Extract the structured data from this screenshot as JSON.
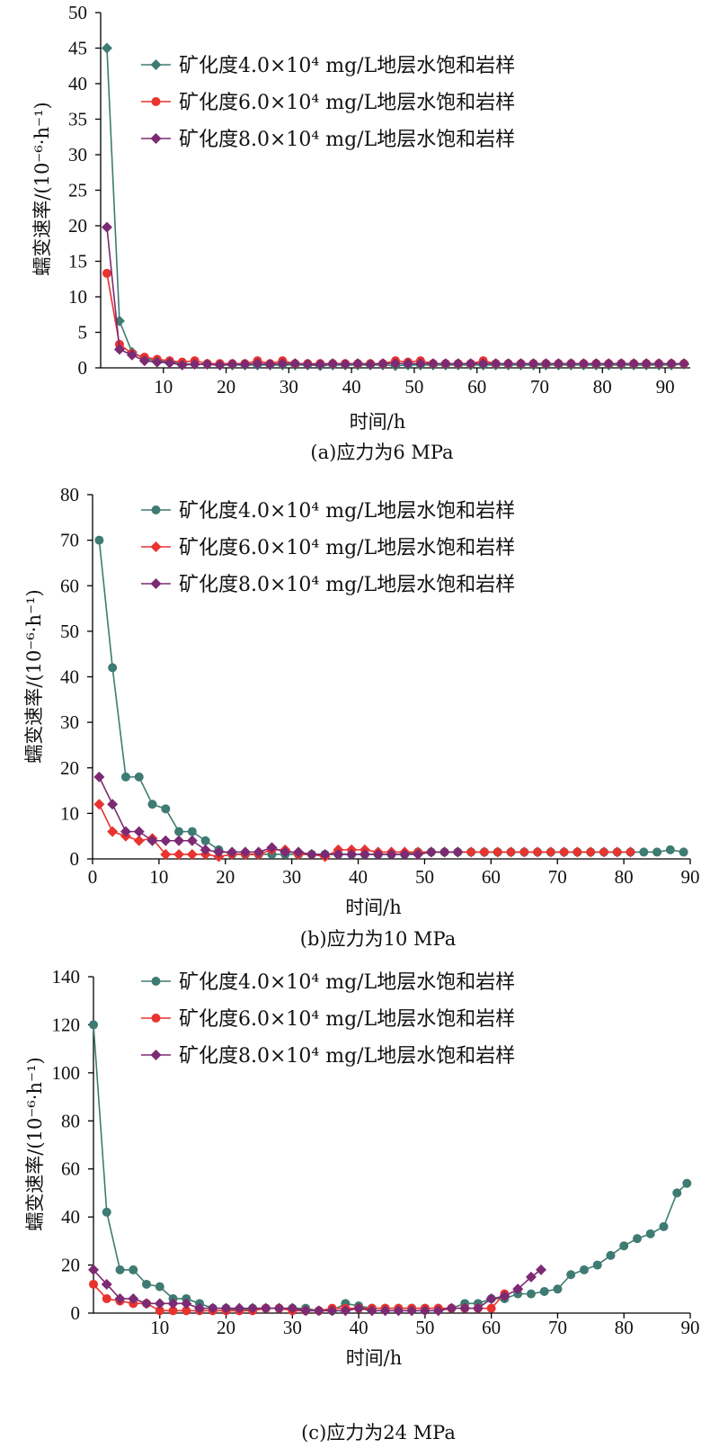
{
  "chart_data": [
    {
      "type": "line",
      "caption": "(a)应力为6 MPa",
      "xlabel": "时间/h",
      "ylabel": "蠕变速率/(10⁻⁶·h⁻¹)",
      "xlim": [
        0,
        94
      ],
      "ylim": [
        0,
        50
      ],
      "xticks": [
        10,
        20,
        30,
        40,
        50,
        60,
        70,
        80,
        90
      ],
      "yticks": [
        0,
        5,
        10,
        15,
        20,
        25,
        30,
        35,
        40,
        45,
        50
      ],
      "legend_position": "top-right",
      "series": [
        {
          "name": "矿化度4.0×10⁴ mg/L地层水饱和岩样",
          "color": "#3E7B72",
          "marker": "diamond",
          "x": [
            1,
            3,
            5,
            7,
            9,
            11,
            13,
            15,
            17,
            19,
            21,
            23,
            25,
            27,
            29,
            31,
            33,
            35,
            37,
            39,
            41,
            43,
            45,
            47,
            49,
            51,
            53,
            55,
            57,
            59,
            61,
            63,
            65,
            67,
            69,
            71,
            73,
            75,
            77,
            79,
            81,
            83,
            85,
            87,
            89,
            91,
            93
          ],
          "y": [
            45,
            6.6,
            2.2,
            1.3,
            1.0,
            0.8,
            0.6,
            0.5,
            0.5,
            0.4,
            0.4,
            0.4,
            0.4,
            0.4,
            0.4,
            0.4,
            0.4,
            0.3,
            0.4,
            0.4,
            0.4,
            0.4,
            0.4,
            0.3,
            0.4,
            0.4,
            0.4,
            0.4,
            0.4,
            0.4,
            0.4,
            0.4,
            0.4,
            0.4,
            0.4,
            0.4,
            0.4,
            0.4,
            0.4,
            0.4,
            0.4,
            0.4,
            0.4,
            0.4,
            0.4,
            0.4,
            0.5
          ]
        },
        {
          "name": "矿化度6.0×10⁴ mg/L地层水饱和岩样",
          "color": "#E8332F",
          "marker": "circle",
          "x": [
            1,
            3,
            5,
            7,
            9,
            11,
            13,
            15,
            17,
            19,
            21,
            23,
            25,
            27,
            29,
            31,
            33,
            35,
            37,
            39,
            41,
            43,
            45,
            47,
            49,
            51,
            53,
            55,
            57,
            59,
            61,
            63,
            65,
            67,
            69,
            71,
            73,
            75,
            77,
            79,
            81,
            83,
            85,
            87,
            89,
            91,
            93
          ],
          "y": [
            13.3,
            3.3,
            2.0,
            1.5,
            1.2,
            1.0,
            0.8,
            1.0,
            0.6,
            0.6,
            0.6,
            0.6,
            1.0,
            0.6,
            1.0,
            0.6,
            0.6,
            0.6,
            0.6,
            0.6,
            0.6,
            0.6,
            0.6,
            1.0,
            0.8,
            1.0,
            0.6,
            0.6,
            0.6,
            0.6,
            1.0,
            0.6,
            0.6,
            0.6,
            0.6,
            0.6,
            0.6,
            0.6,
            0.6,
            0.6,
            0.6,
            0.6,
            0.6,
            0.6,
            0.6,
            0.6,
            0.6
          ]
        },
        {
          "name": "矿化度8.0×10⁴ mg/L地层水饱和岩样",
          "color": "#7B2A73",
          "marker": "diamond",
          "x": [
            1,
            3,
            5,
            7,
            9,
            11,
            13,
            15,
            17,
            19,
            21,
            23,
            25,
            27,
            29,
            31,
            33,
            35,
            37,
            39,
            41,
            43,
            45,
            47,
            49,
            51,
            53,
            55,
            57,
            59,
            61,
            63,
            65,
            67,
            69,
            71,
            73,
            75,
            77,
            79,
            81,
            83,
            85,
            87,
            89,
            91,
            93
          ],
          "y": [
            19.8,
            2.6,
            1.8,
            1.0,
            0.8,
            0.7,
            0.4,
            0.5,
            0.5,
            0.4,
            0.5,
            0.5,
            0.6,
            0.5,
            0.6,
            0.6,
            0.5,
            0.5,
            0.6,
            0.5,
            0.6,
            0.5,
            0.6,
            0.6,
            0.6,
            0.6,
            0.6,
            0.6,
            0.6,
            0.6,
            0.6,
            0.6,
            0.6,
            0.6,
            0.6,
            0.6,
            0.6,
            0.6,
            0.6,
            0.6,
            0.6,
            0.6,
            0.6,
            0.6,
            0.6,
            0.6,
            0.6
          ]
        }
      ]
    },
    {
      "type": "line",
      "caption": "(b)应力为10 MPa",
      "xlabel": "时间/h",
      "ylabel": "蠕变速率/(10⁻⁶·h⁻¹)",
      "xlim": [
        0,
        90
      ],
      "ylim": [
        0,
        80
      ],
      "xticks": [
        0,
        10,
        20,
        30,
        40,
        50,
        60,
        70,
        80,
        90
      ],
      "yticks": [
        0,
        10,
        20,
        30,
        40,
        50,
        60,
        70,
        80
      ],
      "legend_position": "top-right",
      "series": [
        {
          "name": "矿化度4.0×10⁴ mg/L地层水饱和岩样",
          "color": "#3E7B72",
          "marker": "circle",
          "x": [
            1,
            3,
            5,
            7,
            9,
            11,
            13,
            15,
            17,
            19,
            21,
            23,
            25,
            27,
            29,
            31,
            33,
            35,
            37,
            39,
            41,
            43,
            45,
            47,
            49,
            51,
            53,
            55,
            57,
            59,
            61,
            63,
            65,
            67,
            69,
            71,
            73,
            75,
            77,
            79,
            81,
            83,
            85,
            87,
            89
          ],
          "y": [
            70,
            42,
            18,
            18,
            12,
            11,
            6,
            6,
            4,
            2,
            1,
            1,
            1,
            1,
            1,
            1,
            1,
            1,
            1,
            1,
            1,
            1,
            1,
            1,
            1.5,
            1.5,
            1.5,
            1.5,
            1.5,
            1.5,
            1.5,
            1.5,
            1.5,
            1.5,
            1.5,
            1.5,
            1.5,
            1.5,
            1.5,
            1.5,
            1.5,
            1.5,
            1.5,
            2,
            1.5
          ]
        },
        {
          "name": "矿化度6.0×10⁴ mg/L地层水饱和岩样",
          "color": "#E8332F",
          "marker": "diamond",
          "x": [
            1,
            3,
            5,
            7,
            9,
            11,
            13,
            15,
            17,
            19,
            21,
            23,
            25,
            27,
            29,
            31,
            33,
            35,
            37,
            39,
            41,
            43,
            45,
            47,
            49,
            51,
            53,
            55,
            57,
            59,
            61,
            63,
            65,
            67,
            69,
            71,
            73,
            75,
            77,
            79,
            81
          ],
          "y": [
            12,
            6,
            5,
            4,
            4.5,
            1,
            1,
            1,
            1,
            0.5,
            1,
            1,
            1,
            2,
            2,
            1,
            1,
            0.5,
            2,
            2,
            2,
            1.5,
            1.5,
            1.5,
            1.5,
            1.5,
            1.5,
            1.5,
            1.5,
            1.5,
            1.5,
            1.5,
            1.5,
            1.5,
            1.5,
            1.5,
            1.5,
            1.5,
            1.5,
            1.5,
            1.5
          ]
        },
        {
          "name": "矿化度8.0×10⁴ mg/L地层水饱和岩样",
          "color": "#7B2A73",
          "marker": "diamond",
          "x": [
            1,
            3,
            5,
            7,
            9,
            11,
            13,
            15,
            17,
            19,
            21,
            23,
            25,
            27,
            29,
            31,
            33,
            35,
            37,
            39,
            41,
            43,
            45,
            47,
            49,
            51,
            53,
            55
          ],
          "y": [
            18,
            12,
            6,
            6,
            4,
            4,
            4,
            4,
            2,
            1.5,
            1.5,
            1.5,
            1.5,
            2.5,
            1.5,
            1.5,
            1,
            1,
            1,
            1,
            1,
            1,
            1,
            1,
            1,
            1.5,
            1.5,
            1.5
          ]
        }
      ]
    },
    {
      "type": "line",
      "caption": "(c)应力为24 MPa",
      "xlabel": "时间/h",
      "ylabel": "蠕变速率/(10⁻⁶·h⁻¹)",
      "xlim": [
        0,
        90
      ],
      "ylim": [
        0,
        140
      ],
      "xticks": [
        10,
        20,
        30,
        40,
        50,
        60,
        70,
        80,
        90
      ],
      "yticks": [
        0,
        20,
        40,
        60,
        80,
        100,
        120,
        140
      ],
      "legend_position": "top-right",
      "series": [
        {
          "name": "矿化度4.0×10⁴ mg/L地层水饱和岩样",
          "color": "#3E7B72",
          "marker": "circle",
          "x": [
            0,
            2,
            4,
            6,
            8,
            10,
            12,
            14,
            16,
            18,
            20,
            22,
            24,
            26,
            28,
            30,
            32,
            34,
            36,
            38,
            40,
            42,
            44,
            46,
            48,
            50,
            52,
            54,
            56,
            58,
            60,
            62,
            64,
            66,
            68,
            70,
            72,
            74,
            76,
            78,
            80,
            82,
            84,
            86,
            88,
            89.5
          ],
          "y": [
            120,
            42,
            18,
            18,
            12,
            11,
            6,
            6,
            4,
            2,
            2,
            1,
            2,
            2,
            2,
            2,
            2,
            1,
            1,
            4,
            3,
            2,
            2,
            2,
            2,
            2,
            2,
            2,
            4,
            4,
            6,
            6,
            8,
            8,
            9,
            10,
            16,
            18,
            20,
            24,
            28,
            31,
            33,
            36,
            50,
            54
          ]
        },
        {
          "name": "矿化度6.0×10⁴ mg/L地层水饱和岩样",
          "color": "#E8332F",
          "marker": "circle",
          "x": [
            0,
            2,
            4,
            6,
            8,
            10,
            12,
            14,
            16,
            18,
            20,
            22,
            24,
            26,
            28,
            30,
            32,
            34,
            36,
            38,
            40,
            42,
            44,
            46,
            48,
            50,
            52,
            54,
            56,
            58,
            60,
            62
          ],
          "y": [
            12,
            6,
            5,
            4,
            4,
            1,
            1,
            1,
            1,
            1,
            1,
            1,
            1,
            2,
            2,
            1,
            1,
            1,
            2,
            2,
            2,
            2,
            2,
            2,
            2,
            2,
            2,
            2,
            2,
            2,
            2,
            8
          ]
        },
        {
          "name": "矿化度8.0×10⁴ mg/L地层水饱和岩样",
          "color": "#7B2A73",
          "marker": "diamond",
          "x": [
            0,
            2,
            4,
            6,
            8,
            10,
            12,
            14,
            16,
            18,
            20,
            22,
            24,
            26,
            28,
            30,
            32,
            34,
            36,
            38,
            40,
            42,
            44,
            46,
            48,
            50,
            52,
            54,
            56,
            58,
            60,
            62,
            64,
            66,
            67.5
          ],
          "y": [
            18,
            12,
            6,
            6,
            4,
            4,
            4,
            4,
            2,
            2,
            2,
            2,
            2,
            2,
            2,
            2,
            1,
            1,
            1,
            1,
            2,
            1,
            1,
            1,
            1,
            1,
            1,
            2,
            2,
            2,
            6,
            7,
            10,
            15,
            18
          ]
        }
      ]
    }
  ]
}
